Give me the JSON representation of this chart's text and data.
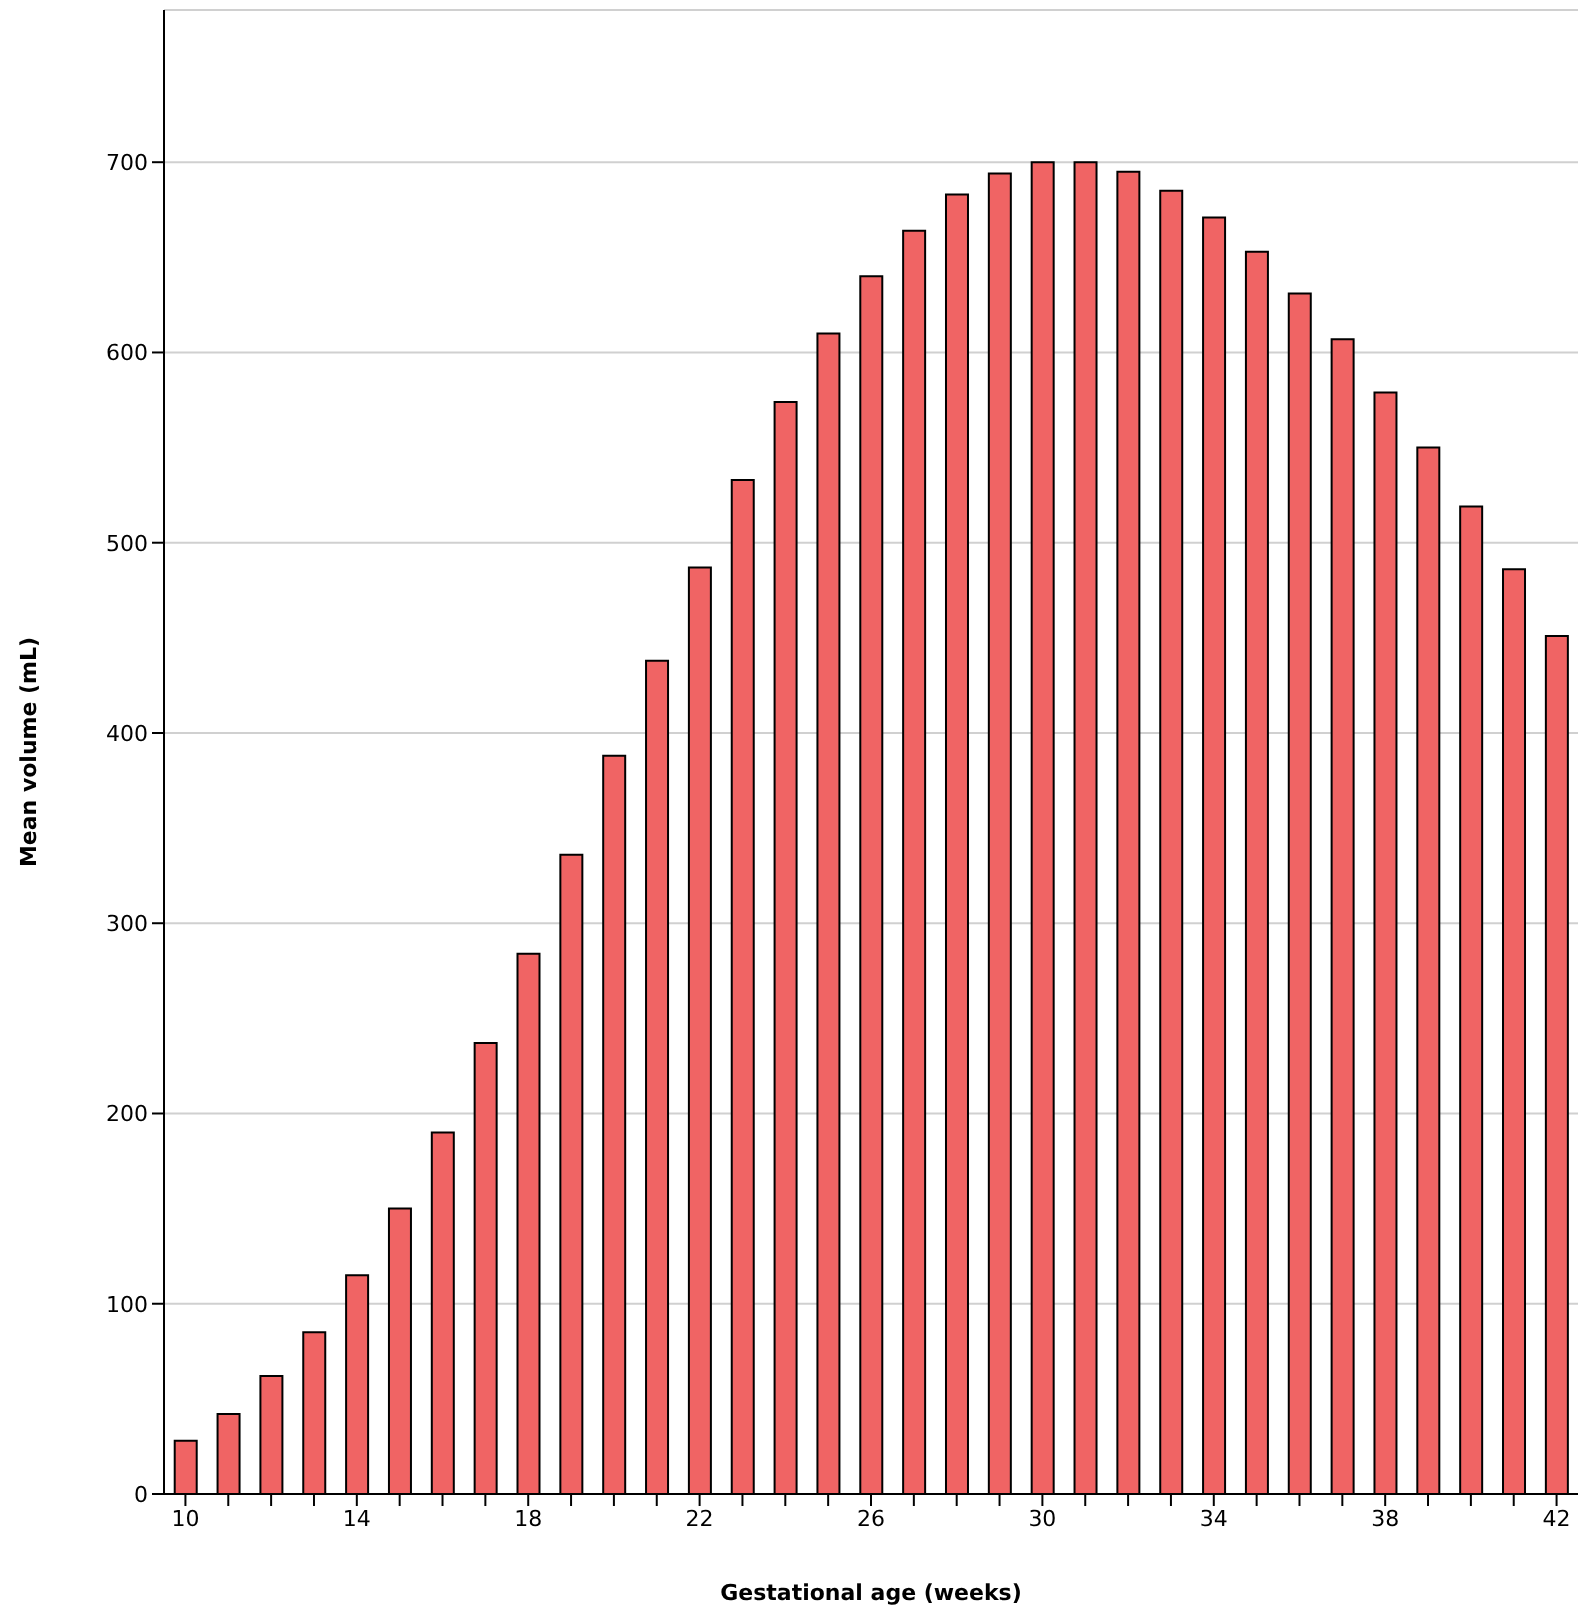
{
  "chart_data": {
    "type": "bar",
    "xlabel": "Gestational age (weeks)",
    "ylabel": "Mean volume (mL)",
    "categories": [
      "10",
      null,
      null,
      null,
      "14",
      null,
      null,
      null,
      "18",
      null,
      null,
      null,
      "22",
      null,
      null,
      null,
      "26",
      null,
      null,
      null,
      "30",
      null,
      null,
      null,
      "34",
      null,
      null,
      null,
      "38",
      null,
      null,
      null,
      "42"
    ],
    "values": [
      28,
      42,
      62,
      85,
      115,
      150,
      190,
      237,
      284,
      336,
      388,
      438,
      487,
      533,
      574,
      610,
      640,
      664,
      683,
      694,
      700,
      700,
      695,
      685,
      671,
      653,
      631,
      607,
      579,
      550,
      519,
      486,
      451
    ],
    "color": "#f06464",
    "ylim": [
      0,
      780
    ],
    "yticks": [
      0,
      100,
      200,
      300,
      400,
      500,
      600,
      700
    ],
    "grid": "y"
  }
}
